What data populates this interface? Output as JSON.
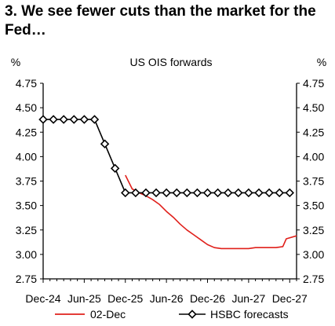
{
  "chart_data": {
    "type": "line",
    "title": "3. We see fewer cuts than the market for the Fed…",
    "subtitle": "US OIS forwards",
    "ylabel_left": "%",
    "ylabel_right": "%",
    "ylim": [
      2.75,
      4.75
    ],
    "yticks": [
      "4.75",
      "4.50",
      "4.25",
      "4.00",
      "3.75",
      "3.50",
      "3.25",
      "3.00",
      "2.75"
    ],
    "ytick_values": [
      4.75,
      4.5,
      4.25,
      4.0,
      3.75,
      3.5,
      3.25,
      3.0,
      2.75
    ],
    "xlim": [
      0,
      37
    ],
    "xticks": [
      "Dec-24",
      "Jun-25",
      "Dec-25",
      "Jun-26",
      "Dec-26",
      "Jun-27",
      "Dec-27"
    ],
    "xtick_positions": [
      0,
      6,
      12,
      18,
      24,
      30,
      36
    ],
    "grid": false,
    "legend_placement": "bottom",
    "series": [
      {
        "name": "02-Dec",
        "color": "#e0201b",
        "marker": "none",
        "points": [
          [
            12,
            3.81
          ],
          [
            13,
            3.67
          ],
          [
            14,
            3.63
          ],
          [
            15,
            3.6
          ],
          [
            16,
            3.56
          ],
          [
            17,
            3.51
          ],
          [
            18,
            3.44
          ],
          [
            19,
            3.38
          ],
          [
            20,
            3.31
          ],
          [
            21,
            3.25
          ],
          [
            22,
            3.2
          ],
          [
            23,
            3.15
          ],
          [
            24,
            3.1
          ],
          [
            25,
            3.07
          ],
          [
            26,
            3.06
          ],
          [
            27,
            3.06
          ],
          [
            28,
            3.06
          ],
          [
            29,
            3.06
          ],
          [
            30,
            3.06
          ],
          [
            31,
            3.07
          ],
          [
            32,
            3.07
          ],
          [
            33,
            3.07
          ],
          [
            34,
            3.07
          ],
          [
            35,
            3.08
          ],
          [
            35.5,
            3.16
          ],
          [
            37,
            3.19
          ]
        ]
      },
      {
        "name": "HSBC forecasts",
        "color": "#000000",
        "marker": "diamond",
        "points": [
          [
            0,
            4.38
          ],
          [
            1.5,
            4.38
          ],
          [
            3,
            4.38
          ],
          [
            4.5,
            4.38
          ],
          [
            6,
            4.38
          ],
          [
            7.5,
            4.38
          ],
          [
            9,
            4.13
          ],
          [
            10.5,
            3.88
          ],
          [
            12,
            3.63
          ],
          [
            13.5,
            3.63
          ],
          [
            15,
            3.63
          ],
          [
            16.5,
            3.63
          ],
          [
            18,
            3.63
          ],
          [
            19.5,
            3.63
          ],
          [
            21,
            3.63
          ],
          [
            22.5,
            3.63
          ],
          [
            24,
            3.63
          ],
          [
            25.5,
            3.63
          ],
          [
            27,
            3.63
          ],
          [
            28.5,
            3.63
          ],
          [
            30,
            3.63
          ],
          [
            31.5,
            3.63
          ],
          [
            33,
            3.63
          ],
          [
            34.5,
            3.63
          ],
          [
            36,
            3.63
          ]
        ]
      }
    ]
  }
}
